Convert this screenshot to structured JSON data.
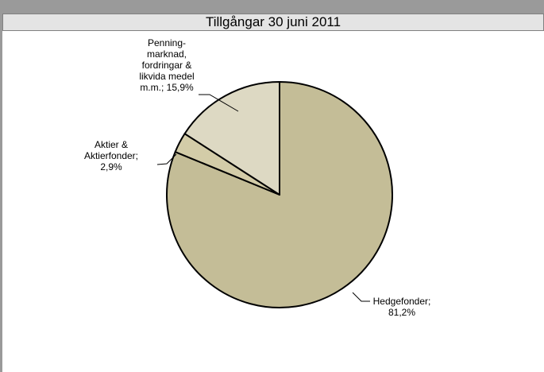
{
  "chart_data": {
    "type": "pie",
    "title": "Tillgångar 30 juni 2011",
    "categories": [
      "Hedgefonder;",
      "Aktier & Aktierfonder;",
      "Penning-marknad, fordringar & likvida medel m.m.;"
    ],
    "values": [
      81.2,
      2.9,
      15.9
    ],
    "value_labels": [
      "81,2%",
      "2,9%",
      "15,9%"
    ],
    "colors": [
      "#c4bd97",
      "#d3cca8",
      "#ddd9c3"
    ]
  }
}
